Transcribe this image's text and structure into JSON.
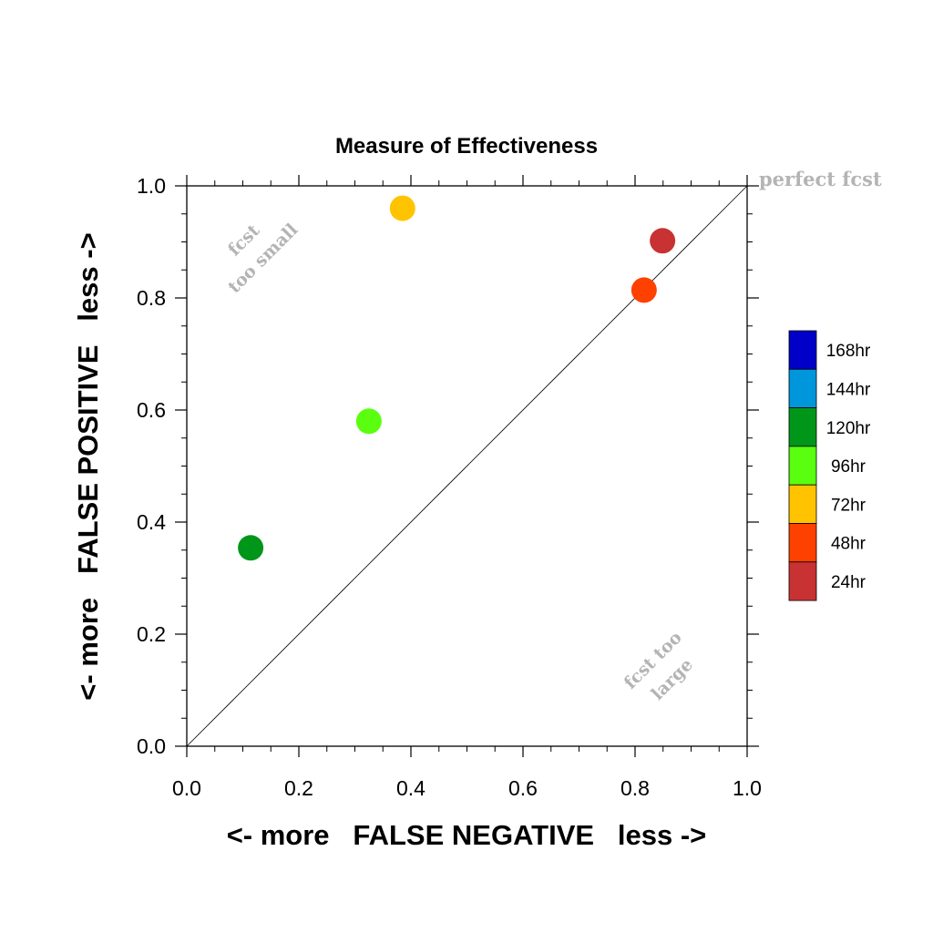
{
  "chart_data": {
    "type": "scatter",
    "title": "Measure of Effectiveness",
    "xlabel": "<- more   FALSE NEGATIVE   less ->",
    "ylabel": "<- more   FALSE POSITIVE   less ->",
    "xlim": [
      0,
      1
    ],
    "ylim": [
      0,
      1
    ],
    "x_ticks": [
      "0.0",
      "0.2",
      "0.4",
      "0.6",
      "0.8",
      "1.0"
    ],
    "y_ticks": [
      "0.0",
      "0.2",
      "0.4",
      "0.6",
      "0.8",
      "1.0"
    ],
    "grid": false,
    "reference_line": "diagonal y = x",
    "annotations": {
      "perfect": "perfect fcst",
      "too_small_1": "fcst",
      "too_small_2": "too small",
      "too_large_1": "fcst too",
      "too_large_2": "large"
    },
    "legend_position": "right",
    "series": [
      {
        "name": "168hr",
        "color": "#0000C8",
        "points": []
      },
      {
        "name": "144hr",
        "color": "#0096DC",
        "points": []
      },
      {
        "name": "120hr",
        "color": "#009619",
        "points": [
          [
            0.114,
            0.354
          ]
        ]
      },
      {
        "name": "96hr",
        "color": "#5AFF0F",
        "points": [
          [
            0.325,
            0.58
          ]
        ]
      },
      {
        "name": "72hr",
        "color": "#FFC300",
        "points": [
          [
            0.385,
            0.96
          ]
        ]
      },
      {
        "name": "48hr",
        "color": "#FF4100",
        "points": [
          [
            0.816,
            0.814
          ]
        ]
      },
      {
        "name": "24hr",
        "color": "#C83232",
        "points": [
          [
            0.849,
            0.902
          ]
        ]
      }
    ]
  }
}
